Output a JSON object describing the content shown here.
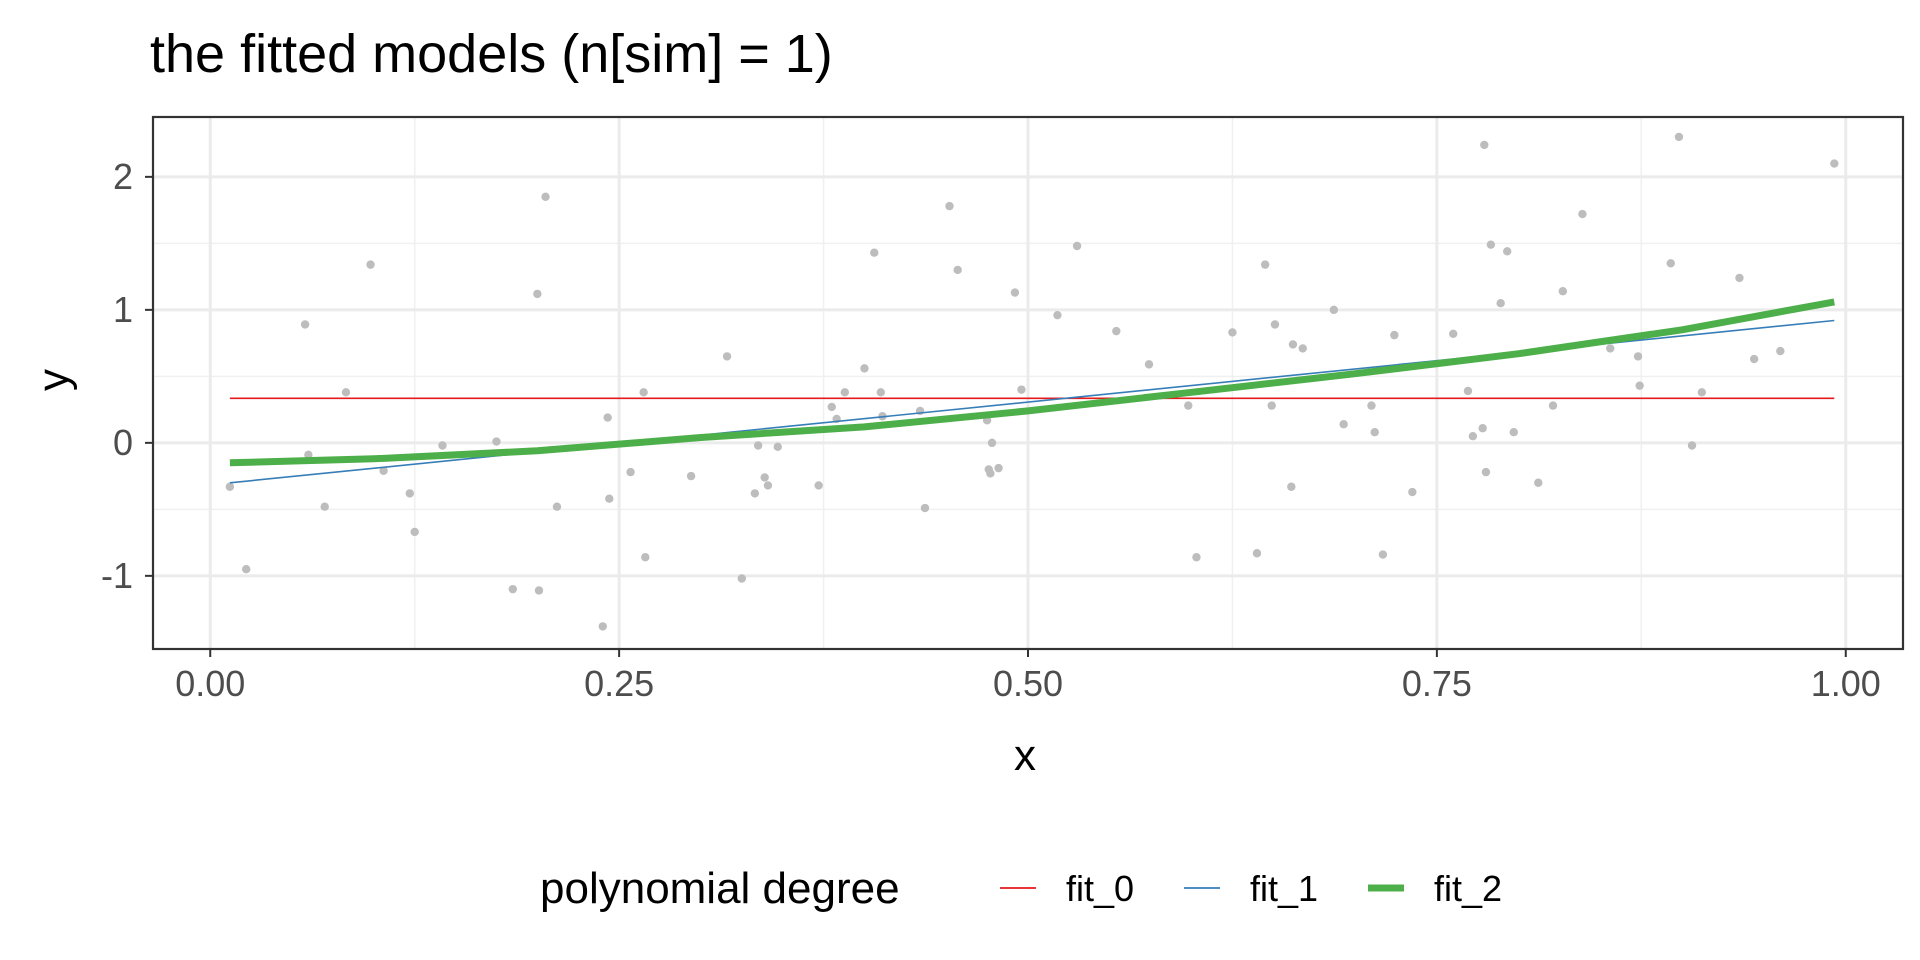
{
  "chart_data": {
    "type": "scatter",
    "title": "the fitted models (n[sim] = 1)",
    "xlabel": "x",
    "ylabel": "y",
    "xlim": [
      -0.035,
      1.035
    ],
    "ylim": [
      -1.55,
      2.45
    ],
    "grid": true,
    "x_ticks": [
      0.0,
      0.25,
      0.5,
      0.75,
      1.0
    ],
    "x_tick_labels": [
      "0.00",
      "0.25",
      "0.50",
      "0.75",
      "1.00"
    ],
    "y_ticks": [
      -1,
      0,
      1,
      2
    ],
    "y_tick_labels": [
      "-1",
      "0",
      "1",
      "2"
    ],
    "legend": {
      "title": "polynomial degree",
      "position": "bottom",
      "entries": [
        {
          "label": "fit_0",
          "color": "#E41A1C",
          "width": "thin"
        },
        {
          "label": "fit_1",
          "color": "#377EB8",
          "width": "thin"
        },
        {
          "label": "fit_2",
          "color": "#4DAF4A",
          "width": "thick"
        }
      ]
    },
    "points_color": "#BDBDBD",
    "points": [
      [
        0.012,
        -0.33
      ],
      [
        0.022,
        -0.95
      ],
      [
        0.058,
        0.89
      ],
      [
        0.06,
        -0.09
      ],
      [
        0.07,
        -0.48
      ],
      [
        0.083,
        0.38
      ],
      [
        0.098,
        1.34
      ],
      [
        0.106,
        -0.21
      ],
      [
        0.122,
        -0.38
      ],
      [
        0.125,
        -0.67
      ],
      [
        0.142,
        -0.02
      ],
      [
        0.175,
        0.01
      ],
      [
        0.185,
        -1.1
      ],
      [
        0.2,
        1.12
      ],
      [
        0.201,
        -1.11
      ],
      [
        0.205,
        1.85
      ],
      [
        0.212,
        -0.48
      ],
      [
        0.24,
        -1.38
      ],
      [
        0.243,
        0.19
      ],
      [
        0.244,
        -0.42
      ],
      [
        0.257,
        -0.22
      ],
      [
        0.265,
        0.38
      ],
      [
        0.266,
        -0.86
      ],
      [
        0.294,
        -0.25
      ],
      [
        0.316,
        0.65
      ],
      [
        0.325,
        -1.02
      ],
      [
        0.333,
        -0.38
      ],
      [
        0.335,
        -0.02
      ],
      [
        0.339,
        -0.26
      ],
      [
        0.341,
        -0.32
      ],
      [
        0.347,
        -0.03
      ],
      [
        0.372,
        -0.32
      ],
      [
        0.38,
        0.27
      ],
      [
        0.383,
        0.18
      ],
      [
        0.388,
        0.38
      ],
      [
        0.4,
        0.56
      ],
      [
        0.406,
        1.43
      ],
      [
        0.41,
        0.38
      ],
      [
        0.411,
        0.2
      ],
      [
        0.434,
        0.24
      ],
      [
        0.437,
        -0.49
      ],
      [
        0.452,
        1.78
      ],
      [
        0.457,
        1.3
      ],
      [
        0.475,
        0.17
      ],
      [
        0.476,
        -0.2
      ],
      [
        0.477,
        -0.23
      ],
      [
        0.478,
        0.0
      ],
      [
        0.482,
        -0.19
      ],
      [
        0.492,
        1.13
      ],
      [
        0.496,
        0.4
      ],
      [
        0.518,
        0.96
      ],
      [
        0.53,
        1.48
      ],
      [
        0.554,
        0.84
      ],
      [
        0.574,
        0.59
      ],
      [
        0.598,
        0.28
      ],
      [
        0.603,
        -0.86
      ],
      [
        0.625,
        0.83
      ],
      [
        0.64,
        -0.83
      ],
      [
        0.645,
        1.34
      ],
      [
        0.649,
        0.28
      ],
      [
        0.651,
        0.89
      ],
      [
        0.661,
        -0.33
      ],
      [
        0.662,
        0.74
      ],
      [
        0.668,
        0.71
      ],
      [
        0.687,
        1.0
      ],
      [
        0.693,
        0.14
      ],
      [
        0.71,
        0.28
      ],
      [
        0.712,
        0.08
      ],
      [
        0.717,
        -0.84
      ],
      [
        0.724,
        0.81
      ],
      [
        0.735,
        -0.37
      ],
      [
        0.76,
        0.82
      ],
      [
        0.769,
        0.39
      ],
      [
        0.772,
        0.05
      ],
      [
        0.778,
        0.11
      ],
      [
        0.779,
        2.24
      ],
      [
        0.78,
        -0.22
      ],
      [
        0.783,
        1.49
      ],
      [
        0.789,
        1.05
      ],
      [
        0.793,
        1.44
      ],
      [
        0.797,
        0.08
      ],
      [
        0.812,
        -0.3
      ],
      [
        0.821,
        0.28
      ],
      [
        0.827,
        1.14
      ],
      [
        0.839,
        1.72
      ],
      [
        0.856,
        0.71
      ],
      [
        0.873,
        0.65
      ],
      [
        0.874,
        0.43
      ],
      [
        0.893,
        1.35
      ],
      [
        0.898,
        2.3
      ],
      [
        0.906,
        -0.02
      ],
      [
        0.912,
        0.38
      ],
      [
        0.935,
        1.24
      ],
      [
        0.944,
        0.63
      ],
      [
        0.96,
        0.69
      ],
      [
        0.993,
        2.1
      ]
    ],
    "series": [
      {
        "name": "fit_0",
        "color": "#E41A1C",
        "x": [
          0.012,
          0.993
        ],
        "y": [
          0.335,
          0.335
        ]
      },
      {
        "name": "fit_1",
        "color": "#377EB8",
        "x": [
          0.012,
          0.993
        ],
        "y": [
          -0.3,
          0.92
        ]
      },
      {
        "name": "fit_2",
        "color": "#4DAF4A",
        "x": [
          0.012,
          0.1,
          0.2,
          0.3,
          0.4,
          0.5,
          0.6,
          0.7,
          0.8,
          0.9,
          0.993
        ],
        "y": [
          -0.15,
          -0.12,
          -0.06,
          0.04,
          0.12,
          0.24,
          0.38,
          0.52,
          0.67,
          0.85,
          1.06
        ]
      }
    ]
  }
}
